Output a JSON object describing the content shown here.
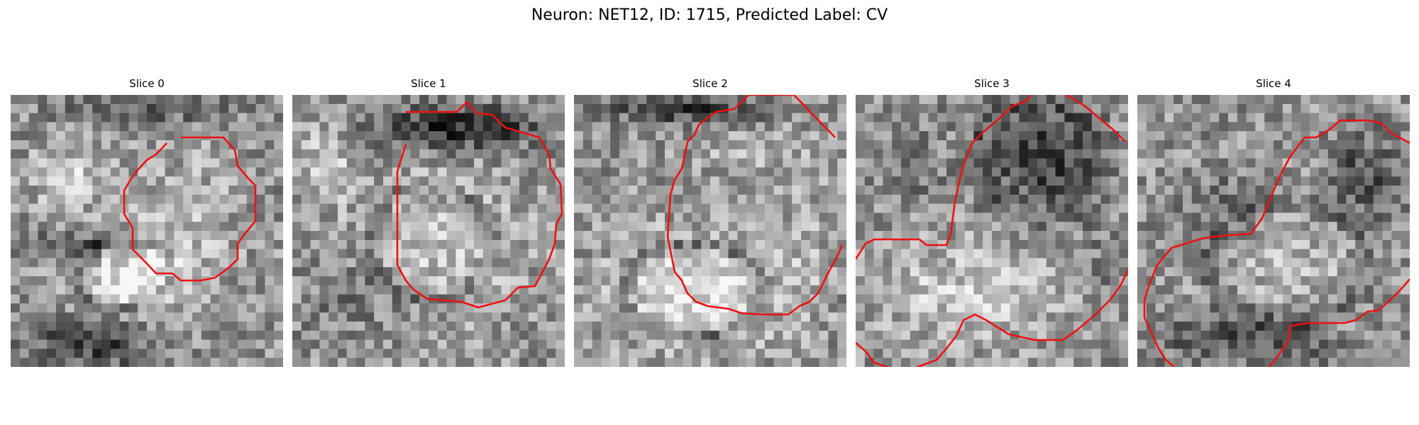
{
  "figure": {
    "title": "Neuron: NET12, ID: 1715, Predicted Label: CV",
    "contour_color": "#ee1111",
    "colormap": "gray",
    "slices": [
      {
        "title": "Slice 0",
        "seed": 11,
        "blobs": [
          [
            0.45,
            0.68,
            0.19,
            0.16,
            0.32
          ],
          [
            0.65,
            0.45,
            0.22,
            0.25,
            0.12
          ],
          [
            0.22,
            0.3,
            0.14,
            0.12,
            0.22
          ],
          [
            0.3,
            0.9,
            0.22,
            0.1,
            -0.38
          ],
          [
            0.5,
            0.05,
            0.3,
            0.06,
            -0.22
          ],
          [
            0.2,
            0.55,
            0.2,
            0.05,
            -0.3
          ]
        ],
        "ring": [
          0.42,
          0.66,
          0.34,
          0.26,
          -0.22
        ]
      },
      {
        "title": "Slice 1",
        "seed": 22,
        "blobs": [
          [
            0.55,
            0.55,
            0.3,
            0.28,
            0.18
          ],
          [
            0.6,
            0.12,
            0.32,
            0.08,
            -0.42
          ],
          [
            0.12,
            0.25,
            0.12,
            0.15,
            0.18
          ],
          [
            0.25,
            0.75,
            0.2,
            0.14,
            -0.12
          ]
        ],
        "ring": [
          0.5,
          0.55,
          0.45,
          0.42,
          -0.18
        ]
      },
      {
        "title": "Slice 2",
        "seed": 33,
        "blobs": [
          [
            0.45,
            0.72,
            0.32,
            0.2,
            0.34
          ],
          [
            0.62,
            0.2,
            0.22,
            0.12,
            0.1
          ],
          [
            0.4,
            0.05,
            0.3,
            0.06,
            -0.35
          ],
          [
            0.85,
            0.5,
            0.1,
            0.3,
            0.08
          ]
        ],
        "ring": [
          0.44,
          0.72,
          0.52,
          0.34,
          -0.3
        ]
      },
      {
        "title": "Slice 3",
        "seed": 44,
        "blobs": [
          [
            0.68,
            0.22,
            0.2,
            0.2,
            -0.38
          ],
          [
            0.4,
            0.72,
            0.35,
            0.2,
            0.2
          ],
          [
            0.2,
            0.25,
            0.12,
            0.18,
            -0.12
          ],
          [
            0.9,
            0.6,
            0.1,
            0.15,
            -0.08
          ]
        ],
        "ring": [
          0.66,
          0.24,
          0.44,
          0.44,
          -0.12
        ]
      },
      {
        "title": "Slice 4",
        "seed": 55,
        "blobs": [
          [
            0.55,
            0.62,
            0.3,
            0.22,
            0.12
          ],
          [
            0.4,
            0.9,
            0.3,
            0.1,
            -0.3
          ],
          [
            0.85,
            0.3,
            0.15,
            0.15,
            -0.28
          ],
          [
            0.3,
            0.4,
            0.15,
            0.15,
            -0.12
          ]
        ],
        "ring": [
          0.55,
          0.62,
          0.6,
          0.44,
          -0.15
        ]
      }
    ]
  }
}
